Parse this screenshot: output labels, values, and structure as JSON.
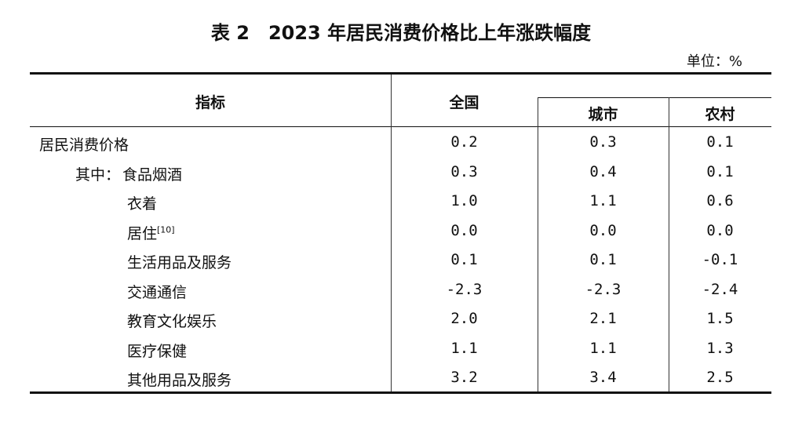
{
  "title": "表 2　2023 年居民消费价格比上年涨跌幅度",
  "unit": "单位：%",
  "headers": {
    "indicator": "指标",
    "national": "全国",
    "urban": "城市",
    "rural": "农村"
  },
  "rows": [
    {
      "label": "居民消费价格",
      "prefix": "",
      "sup": "",
      "national": "0.2",
      "urban": "0.3",
      "rural": "0.1",
      "indent": 0
    },
    {
      "label": "食品烟酒",
      "prefix": "其中：",
      "sup": "",
      "national": "0.3",
      "urban": "0.4",
      "rural": "0.1",
      "indent": 1
    },
    {
      "label": "衣着",
      "prefix": "",
      "sup": "",
      "national": "1.0",
      "urban": "1.1",
      "rural": "0.6",
      "indent": 2
    },
    {
      "label": "居住",
      "prefix": "",
      "sup": "[10]",
      "national": "0.0",
      "urban": "0.0",
      "rural": "0.0",
      "indent": 2
    },
    {
      "label": "生活用品及服务",
      "prefix": "",
      "sup": "",
      "national": "0.1",
      "urban": "0.1",
      "rural": "-0.1",
      "indent": 2
    },
    {
      "label": "交通通信",
      "prefix": "",
      "sup": "",
      "national": "-2.3",
      "urban": "-2.3",
      "rural": "-2.4",
      "indent": 2
    },
    {
      "label": "教育文化娱乐",
      "prefix": "",
      "sup": "",
      "national": "2.0",
      "urban": "2.1",
      "rural": "1.5",
      "indent": 2
    },
    {
      "label": "医疗保健",
      "prefix": "",
      "sup": "",
      "national": "1.1",
      "urban": "1.1",
      "rural": "1.3",
      "indent": 2
    },
    {
      "label": "其他用品及服务",
      "prefix": "",
      "sup": "",
      "national": "3.2",
      "urban": "3.4",
      "rural": "2.5",
      "indent": 2
    }
  ]
}
